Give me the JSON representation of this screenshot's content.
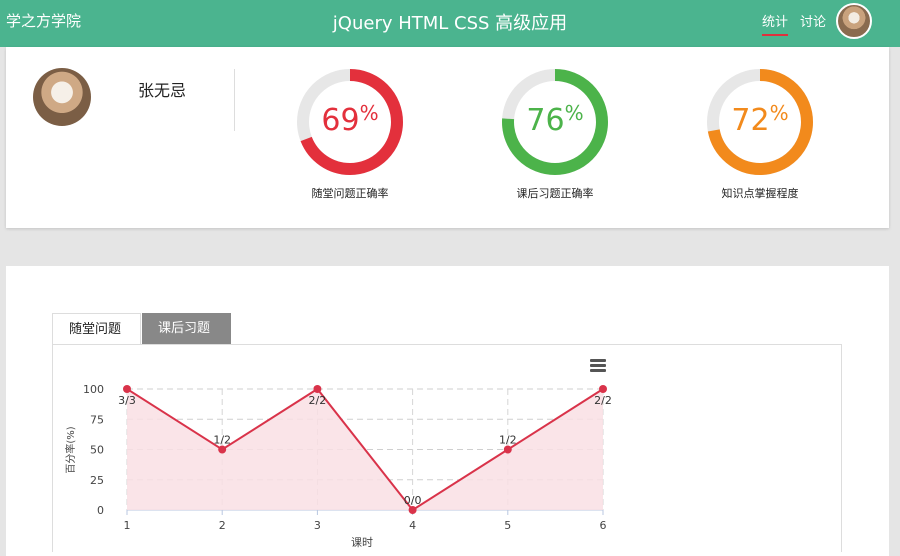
{
  "header": {
    "brand": "学之方学院",
    "title": "jQuery HTML CSS 高级应用",
    "nav": [
      {
        "label": "统计",
        "active": true
      },
      {
        "label": "讨论",
        "active": false
      }
    ]
  },
  "profile": {
    "name": "张无忌"
  },
  "gauges": [
    {
      "value": "69",
      "unit": "%",
      "label": "随堂问题正确率",
      "color": "#e3303c",
      "percent": 69
    },
    {
      "value": "76",
      "unit": "%",
      "label": "课后习题正确率",
      "color": "#4cb34a",
      "percent": 76
    },
    {
      "value": "72",
      "unit": "%",
      "label": "知识点掌握程度",
      "color": "#f28a1c",
      "percent": 72
    }
  ],
  "tabs": [
    {
      "label": "随堂问题",
      "active": true
    },
    {
      "label": "课后习题",
      "active": false
    }
  ],
  "chart_data": {
    "type": "area",
    "x": [
      1,
      2,
      3,
      4,
      5,
      6
    ],
    "values": [
      100,
      50,
      100,
      0,
      50,
      100
    ],
    "data_labels": [
      "3/3",
      "1/2",
      "2/2",
      "0/0",
      "1/2",
      "2/2"
    ],
    "xlabel": "课时",
    "ylabel": "百分率(%)",
    "yticks": [
      0,
      25,
      50,
      75,
      100
    ],
    "ylim": [
      0,
      100
    ],
    "grid": true,
    "color": "#d9334a",
    "fill": "#f9dfe4"
  }
}
